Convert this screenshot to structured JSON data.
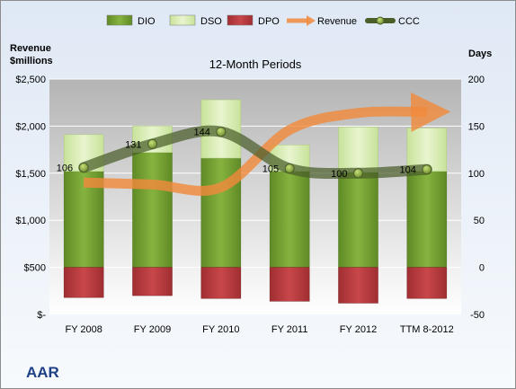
{
  "chart_data": {
    "type": "bar",
    "title": "12-Month Periods",
    "company": "AAR",
    "left_axis_label": [
      "Revenue",
      "$millions"
    ],
    "right_axis_label": "Days",
    "left_ticks": [
      "$-",
      "$500",
      "$1,000",
      "$1,500",
      "$2,000",
      "$2,500"
    ],
    "right_ticks": [
      "-50",
      "0",
      "50",
      "100",
      "150",
      "200"
    ],
    "left_ylim": [
      0,
      2500
    ],
    "right_ylim": [
      -50,
      200
    ],
    "categories": [
      "FY 2008",
      "FY 2009",
      "FY 2010",
      "FY 2011",
      "FY 2012",
      "TTM 8-2012"
    ],
    "legend": [
      {
        "name": "DIO",
        "marker": "bar",
        "color": "#6f9c2e"
      },
      {
        "name": "DSO",
        "marker": "bar",
        "color": "#d8edb0"
      },
      {
        "name": "DPO",
        "marker": "bar",
        "color": "#b8383c"
      },
      {
        "name": "Revenue",
        "marker": "arrow",
        "color": "#f08a3c"
      },
      {
        "name": "CCC",
        "marker": "line",
        "color": "#4a5e2a"
      }
    ],
    "series": [
      {
        "name": "DIO",
        "values": [
          102,
          122,
          116,
          102,
          101,
          102
        ]
      },
      {
        "name": "DSO",
        "values": [
          39,
          28,
          62,
          28,
          48,
          46
        ]
      },
      {
        "name": "DPO",
        "values": [
          -32,
          -30,
          -33,
          -36,
          -38,
          -33
        ]
      },
      {
        "name": "CCC",
        "values": [
          106,
          131,
          144,
          105,
          100,
          104
        ]
      },
      {
        "name": "Revenue",
        "values": [
          1400,
          1380,
          1350,
          1960,
          2140,
          2150
        ]
      }
    ],
    "data_labels": [
      "106",
      "131",
      "144",
      "105",
      "100",
      "104"
    ],
    "grid": true
  },
  "colors": {
    "dio": "#6f9c2e",
    "dso": "#d8edb0",
    "dpo": "#b8383c",
    "revenue": "#f08a3c",
    "ccc": "#4a5e2a",
    "plot_top": "#b7b7b7",
    "plot_bottom": "#ffffff"
  }
}
